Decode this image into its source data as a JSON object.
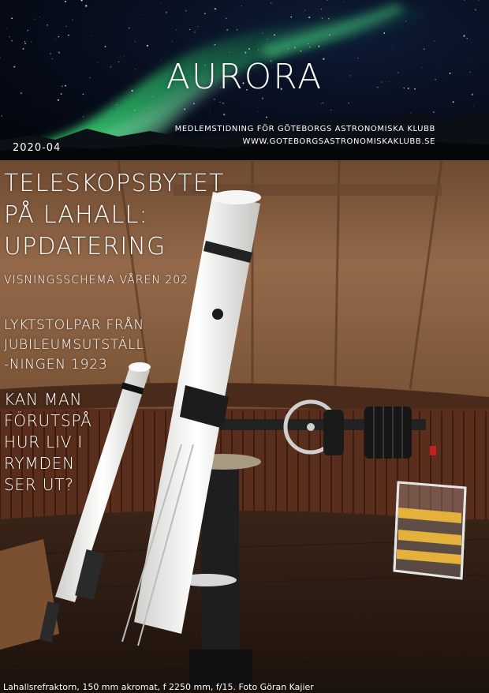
{
  "masthead": {
    "title": "AURORA",
    "subtitle_line1": "MEDLEMSTIDNING FÖR GÖTEBORGS ASTRONOMISKA KLUBB",
    "subtitle_line2": "WWW.GOTEBORGSASTRONOMISKAKLUBB.SE",
    "issue": "2020-04"
  },
  "headlines": {
    "main": [
      "TELESKOPSBYTET",
      "PÅ LAHALL:",
      "UPDATERING"
    ],
    "schedule": "VISNINGSSCHEMA VÅREN 202",
    "lampposts": [
      "LYKTSTOLPAR FRÅN",
      "JUBILEUMSUTSTÄLL",
      "-NINGEN 1923"
    ],
    "life": [
      "KAN MAN",
      "FÖRUTSPÅ",
      "HUR LIV I",
      "RYMDEN",
      "SER UT?"
    ]
  },
  "caption": "Lahallsrefraktorn, 150 mm akromat, f 2250 mm, f/15. Foto Göran Kajier",
  "colors": {
    "sky": "#070d1c",
    "aurora_green": "#3fe07a",
    "dome_wood": "#8a6040",
    "telescope_white": "#f4f4f2"
  }
}
